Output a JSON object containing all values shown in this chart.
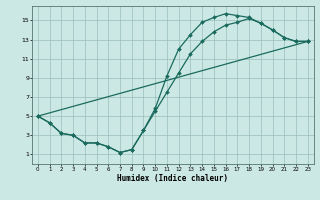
{
  "xlabel": "Humidex (Indice chaleur)",
  "bg_color": "#cce8e4",
  "grid_color": "#9abfbb",
  "line_color": "#1a6b5e",
  "xlim": [
    -0.5,
    23.5
  ],
  "ylim": [
    0.0,
    16.5
  ],
  "xticks": [
    0,
    1,
    2,
    3,
    4,
    5,
    6,
    7,
    8,
    9,
    10,
    11,
    12,
    13,
    14,
    15,
    16,
    17,
    18,
    19,
    20,
    21,
    22,
    23
  ],
  "yticks": [
    1,
    3,
    5,
    7,
    9,
    11,
    13,
    15
  ],
  "line1_x": [
    0,
    1,
    2,
    3,
    4,
    5,
    6,
    7,
    8,
    9,
    10,
    11,
    12,
    13,
    14,
    15,
    16,
    17,
    18,
    19,
    20,
    21,
    22,
    23
  ],
  "line1_y": [
    5,
    4.3,
    3.2,
    3.0,
    2.2,
    2.2,
    1.8,
    1.2,
    1.5,
    3.5,
    5.8,
    9.2,
    12.0,
    13.5,
    14.8,
    15.3,
    15.7,
    15.5,
    15.3,
    14.7,
    14.0,
    13.2,
    12.8,
    12.8
  ],
  "line2_x": [
    0,
    1,
    2,
    3,
    4,
    5,
    6,
    7,
    8,
    9,
    10,
    11,
    12,
    13,
    14,
    15,
    16,
    17,
    18,
    19,
    20,
    21,
    22,
    23
  ],
  "line2_y": [
    5,
    4.3,
    3.2,
    3.0,
    2.2,
    2.2,
    1.8,
    1.2,
    1.5,
    3.5,
    5.5,
    7.5,
    9.5,
    11.5,
    12.8,
    13.8,
    14.5,
    14.8,
    15.2,
    14.7,
    14.0,
    13.2,
    12.8,
    12.8
  ],
  "line3_x": [
    0,
    23
  ],
  "line3_y": [
    5,
    12.8
  ],
  "lw": 0.9,
  "ms": 2.0
}
